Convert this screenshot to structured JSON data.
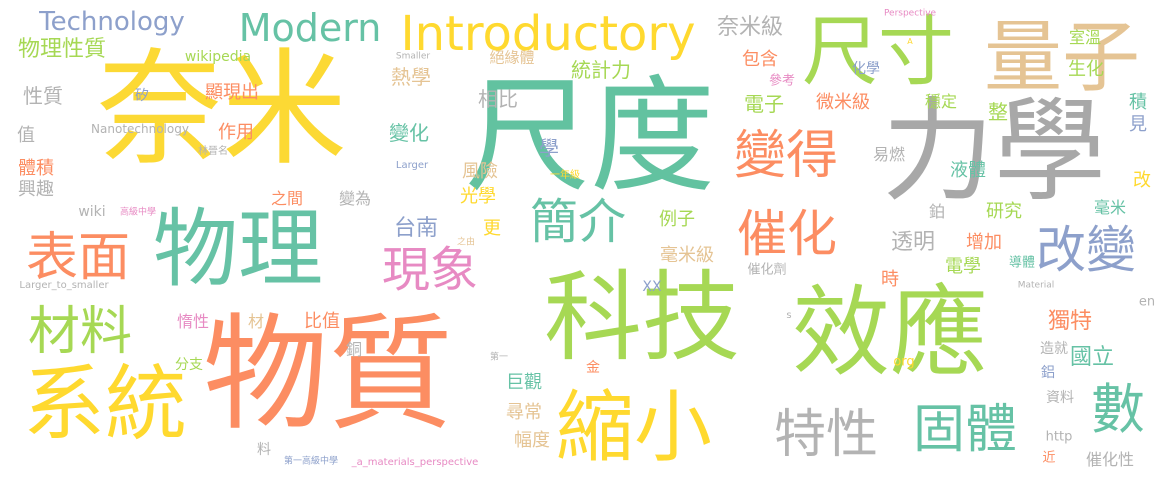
{
  "words": [
    {
      "text": "尺度",
      "color": "#62C2A0"
    },
    {
      "text": "奈米",
      "color": "#FCD934"
    },
    {
      "text": "力學",
      "color": "#A8A8A8"
    },
    {
      "text": "物質",
      "color": "#FC8D62"
    },
    {
      "text": "科技",
      "color": "#A6D854"
    },
    {
      "text": "效應",
      "color": "#A6D854"
    },
    {
      "text": "物理",
      "color": "#66C2A5"
    },
    {
      "text": "尺寸",
      "color": "#A6D854"
    },
    {
      "text": "量子",
      "color": "#E5C494"
    },
    {
      "text": "系統",
      "color": "#FFD92F"
    },
    {
      "text": "縮小",
      "color": "#FFD92F"
    },
    {
      "text": "Introductory",
      "color": "#FFD92F"
    },
    {
      "text": "Modern",
      "color": "#66C2A5"
    },
    {
      "text": "Technology",
      "color": "#8DA0CB"
    },
    {
      "text": "變得",
      "color": "#FC8D62"
    },
    {
      "text": "表面",
      "color": "#FC8D62"
    },
    {
      "text": "材料",
      "color": "#A6D854"
    },
    {
      "text": "現象",
      "color": "#E78AC3"
    },
    {
      "text": "簡介",
      "color": "#66C2A5"
    },
    {
      "text": "催化",
      "color": "#FC8D62"
    },
    {
      "text": "改變",
      "color": "#8DA0CB"
    },
    {
      "text": "特性",
      "color": "#B3B3B3"
    },
    {
      "text": "固體",
      "color": "#66C2A5"
    },
    {
      "text": "數",
      "color": "#66C2A5"
    },
    {
      "text": "奈米級",
      "color": "#B3B3B3"
    },
    {
      "text": "物理性質",
      "color": "#A6D854"
    },
    {
      "text": "wikipedia",
      "color": "#A6D854"
    },
    {
      "text": "性質",
      "color": "#B3B3B3"
    },
    {
      "text": "顯現出",
      "color": "#FC8D62"
    },
    {
      "text": "矽",
      "color": "#8DA0CB"
    },
    {
      "text": "熱學",
      "color": "#E5C494"
    },
    {
      "text": "統計力",
      "color": "#A6D854"
    },
    {
      "text": "絕緣體",
      "color": "#E5C494"
    },
    {
      "text": "包含",
      "color": "#FC8D62"
    },
    {
      "text": "參考",
      "color": "#E78AC3"
    },
    {
      "text": "化學",
      "color": "#8DA0CB"
    },
    {
      "text": "生化",
      "color": "#A6D854"
    },
    {
      "text": "室溫",
      "color": "#A6D854"
    },
    {
      "text": "相比",
      "color": "#B3B3B3"
    },
    {
      "text": "電子",
      "color": "#A6D854"
    },
    {
      "text": "微米級",
      "color": "#FC8D62"
    },
    {
      "text": "穩定",
      "color": "#A6D854"
    },
    {
      "text": "整",
      "color": "#A6D854"
    },
    {
      "text": "積",
      "color": "#66C2A5"
    },
    {
      "text": "見",
      "color": "#8DA0CB"
    },
    {
      "text": "Nanotechnology",
      "color": "#B3B3B3"
    },
    {
      "text": "值",
      "color": "#B3B3B3"
    },
    {
      "text": "作用",
      "color": "#FC8D62"
    },
    {
      "text": "林晉名",
      "color": "#B3B3B3"
    },
    {
      "text": "變化",
      "color": "#66C2A5"
    },
    {
      "text": "學",
      "color": "#8DA0CB"
    },
    {
      "text": "易燃",
      "color": "#B3B3B3"
    },
    {
      "text": "液體",
      "color": "#66C2A5"
    },
    {
      "text": "改",
      "color": "#FFD92F"
    },
    {
      "text": "體積",
      "color": "#FC8D62"
    },
    {
      "text": "興趣",
      "color": "#B3B3B3"
    },
    {
      "text": "風險",
      "color": "#E5C494"
    },
    {
      "text": "光學",
      "color": "#FFD92F"
    },
    {
      "text": "一年級",
      "color": "#FFD92F"
    },
    {
      "text": "Larger",
      "color": "#8DA0CB"
    },
    {
      "text": "之間",
      "color": "#FC8D62"
    },
    {
      "text": "變為",
      "color": "#B3B3B3"
    },
    {
      "text": "wiki",
      "color": "#B3B3B3"
    },
    {
      "text": "高級中學",
      "color": "#E78AC3"
    },
    {
      "text": "鉑",
      "color": "#B3B3B3"
    },
    {
      "text": "研究",
      "color": "#A6D854"
    },
    {
      "text": "毫米",
      "color": "#66C2A5"
    },
    {
      "text": "台南",
      "color": "#8DA0CB"
    },
    {
      "text": "更",
      "color": "#FFD92F"
    },
    {
      "text": "之由",
      "color": "#E5C494"
    },
    {
      "text": "例子",
      "color": "#A6D854"
    },
    {
      "text": "透明",
      "color": "#B3B3B3"
    },
    {
      "text": "增加",
      "color": "#FC8D62"
    },
    {
      "text": "導體",
      "color": "#66C2A5"
    },
    {
      "text": "毫米級",
      "color": "#E5C494"
    },
    {
      "text": "催化劑",
      "color": "#B3B3B3"
    },
    {
      "text": "時",
      "color": "#FC8D62"
    },
    {
      "text": "電學",
      "color": "#A6D854"
    },
    {
      "text": "Larger_to_smaller",
      "color": "#B3B3B3"
    },
    {
      "text": "XX",
      "color": "#8DA0CB"
    },
    {
      "text": "Material",
      "color": "#B3B3B3"
    },
    {
      "text": "獨特",
      "color": "#FC8D62"
    },
    {
      "text": "en",
      "color": "#B3B3B3"
    },
    {
      "text": "惰性",
      "color": "#E78AC3"
    },
    {
      "text": "材",
      "color": "#E5C494"
    },
    {
      "text": "比值",
      "color": "#FC8D62"
    },
    {
      "text": "s",
      "color": "#B3B3B3"
    },
    {
      "text": "國立",
      "color": "#66C2A5"
    },
    {
      "text": "銅",
      "color": "#B3B3B3"
    },
    {
      "text": "第一",
      "color": "#B3B3B3"
    },
    {
      "text": "金",
      "color": "#FC8D62"
    },
    {
      "text": "org",
      "color": "#FFD92F"
    },
    {
      "text": "造就",
      "color": "#B3B3B3"
    },
    {
      "text": "鋁",
      "color": "#8DA0CB"
    },
    {
      "text": "資料",
      "color": "#B3B3B3"
    },
    {
      "text": "分支",
      "color": "#A6D854"
    },
    {
      "text": "巨觀",
      "color": "#66C2A5"
    },
    {
      "text": "尋常",
      "color": "#E5C494"
    },
    {
      "text": "幅度",
      "color": "#E5C494"
    },
    {
      "text": "http",
      "color": "#B3B3B3"
    },
    {
      "text": "近",
      "color": "#FC8D62"
    },
    {
      "text": "催化性",
      "color": "#B3B3B3"
    },
    {
      "text": "料",
      "color": "#B3B3B3"
    },
    {
      "text": "第一高級中學",
      "color": "#8DA0CB"
    },
    {
      "text": "_a_materials_perspective",
      "color": "#E78AC3"
    },
    {
      "text": "Perspective",
      "color": "#E78AC3"
    },
    {
      "text": "A",
      "color": "#FFD92F"
    },
    {
      "text": "Smaller",
      "color": "#B3B3B3"
    }
  ]
}
